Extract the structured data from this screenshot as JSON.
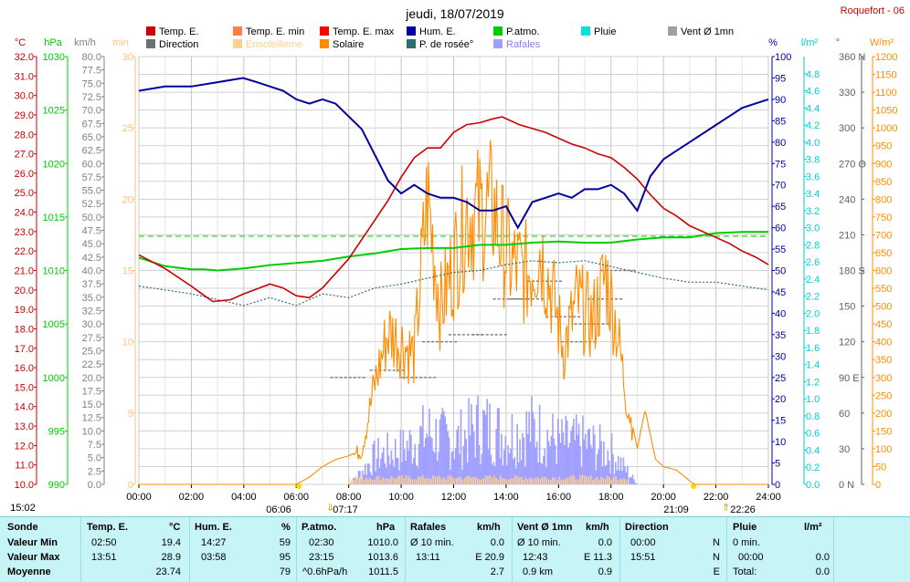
{
  "chart_data": {
    "type": "line",
    "title": "jeudi, 18/07/2019",
    "station": "Roquefort - 06",
    "legend": [
      {
        "label": "Temp. E.",
        "color": "#cc0000"
      },
      {
        "label": "Temp. E. min",
        "color": "#ff7f3f"
      },
      {
        "label": "Temp. E. max",
        "color": "#ff0000"
      },
      {
        "label": "Hum. E.",
        "color": "#0000a0"
      },
      {
        "label": "P.atmo.",
        "color": "#00cc00"
      },
      {
        "label": "Pluie",
        "color": "#00e0e0"
      },
      {
        "label": "Vent Ø 1mn",
        "color": "#a0a0a0"
      },
      {
        "label": "Direction",
        "color": "#707070"
      },
      {
        "label": "Ensoleilleme",
        "color": "#ffd090"
      },
      {
        "label": "Solaire",
        "color": "#ff8c00"
      },
      {
        "label": "P. de rosée°",
        "color": "#2f6f6f"
      },
      {
        "label": "Rafales",
        "color": "#a0a0ff"
      }
    ],
    "axes": {
      "temp_c": {
        "unit": "°C",
        "min": 10,
        "max": 32,
        "ticks": [
          "10.0",
          "11.0",
          "12.0",
          "13.0",
          "14.0",
          "15.0",
          "16.0",
          "17.0",
          "18.0",
          "19.0",
          "20.0",
          "21.0",
          "22.0",
          "23.0",
          "24.0",
          "25.0",
          "26.0",
          "27.0",
          "28.0",
          "29.0",
          "30.0",
          "31.0",
          "32.0"
        ]
      },
      "pressure_hpa": {
        "unit": "hPa",
        "min": 990,
        "max": 1030,
        "ticks": [
          "990",
          "995",
          "1000",
          "1005",
          "1010",
          "1015",
          "1020",
          "1025",
          "1030"
        ]
      },
      "wind_kmh": {
        "unit": "km/h",
        "min": 0,
        "max": 80,
        "ticks": [
          "0.0",
          "2.5",
          "5.0",
          "7.5",
          "10.0",
          "12.5",
          "15.0",
          "17.5",
          "20.0",
          "22.5",
          "25.0",
          "27.5",
          "30.0",
          "32.5",
          "35.0",
          "37.5",
          "40.0",
          "42.5",
          "45.0",
          "47.5",
          "50.0",
          "52.5",
          "55.0",
          "57.5",
          "60.0",
          "62.5",
          "65.0",
          "67.5",
          "70.0",
          "72.5",
          "75.0",
          "77.5",
          "80.0"
        ]
      },
      "rain_min": {
        "unit": "min",
        "min": 0,
        "max": 30,
        "ticks": [
          "0",
          "5",
          "10",
          "15",
          "20",
          "25",
          "30"
        ]
      },
      "humidity_pct": {
        "unit": "%",
        "min": 0,
        "max": 100,
        "ticks": [
          "0",
          "5",
          "10",
          "15",
          "20",
          "25",
          "30",
          "35",
          "40",
          "45",
          "50",
          "55",
          "60",
          "65",
          "70",
          "75",
          "80",
          "85",
          "90",
          "95",
          "100"
        ]
      },
      "rain_lm2": {
        "unit": "l/m²",
        "min": 0,
        "max": 5,
        "ticks": [
          "0.0",
          "0.2",
          "0.4",
          "0.6",
          "0.8",
          "1.0",
          "1.2",
          "1.4",
          "1.6",
          "1.8",
          "2.0",
          "2.2",
          "2.4",
          "2.6",
          "2.8",
          "3.0",
          "3.2",
          "3.4",
          "3.6",
          "3.8",
          "4.0",
          "4.2",
          "4.4",
          "4.6",
          "4.8"
        ]
      },
      "direction_deg": {
        "unit": "°",
        "min": 0,
        "max": 360,
        "ticks": [
          "0 N",
          "30",
          "60",
          "90 E",
          "120",
          "150",
          "180 S",
          "210",
          "240",
          "270 O",
          "300",
          "330",
          "360 N"
        ]
      },
      "solar_wm2": {
        "unit": "W/m²",
        "min": 0,
        "max": 1200,
        "ticks": [
          "0",
          "50",
          "100",
          "150",
          "200",
          "250",
          "300",
          "350",
          "400",
          "450",
          "500",
          "550",
          "600",
          "650",
          "700",
          "750",
          "800",
          "850",
          "900",
          "950",
          "1000",
          "1050",
          "1100",
          "1150",
          "1200"
        ]
      }
    },
    "x_ticks": [
      "00:00",
      "02:00",
      "04:00",
      "06:00",
      "08:00",
      "10:00",
      "12:00",
      "14:00",
      "16:00",
      "18:00",
      "20:00",
      "22:00",
      "24:00"
    ],
    "sun_markers": {
      "sunrise": "06:06",
      "sunset": "21:09",
      "moonset": "07:17",
      "moonrise": "22:26",
      "moon_prev": "15:02"
    },
    "series": [
      {
        "name": "Temp. E.",
        "axis": "temp_c",
        "color": "#cc0000",
        "x": [
          0,
          1,
          2,
          2.5,
          2.83,
          3.5,
          4,
          5,
          5.5,
          6,
          6.5,
          7,
          8,
          9,
          9.5,
          10,
          10.5,
          11,
          11.5,
          12,
          12.5,
          13,
          13.5,
          13.85,
          14.5,
          15,
          15.5,
          16,
          16.5,
          17,
          17.5,
          18,
          18.5,
          19,
          19.5,
          20,
          20.5,
          21,
          21.5,
          22,
          22.5,
          23,
          23.5,
          24
        ],
        "y": [
          21.8,
          21.1,
          20.2,
          19.7,
          19.4,
          19.5,
          19.8,
          20.3,
          20.1,
          19.7,
          19.6,
          20.1,
          21.6,
          23.6,
          24.6,
          25.8,
          26.8,
          27.3,
          27.3,
          28.1,
          28.5,
          28.6,
          28.8,
          28.9,
          28.5,
          28.3,
          28.1,
          27.8,
          27.5,
          27.3,
          27.0,
          26.8,
          26.3,
          25.7,
          24.9,
          24.2,
          23.8,
          23.3,
          23.0,
          22.7,
          22.4,
          22.0,
          21.7,
          21.3
        ]
      },
      {
        "name": "Hum. E.",
        "axis": "humidity_pct",
        "color": "#0000a0",
        "x": [
          0,
          1,
          2,
          3,
          3.97,
          4.5,
          5,
          5.5,
          6,
          6.5,
          7,
          7.5,
          8,
          8.5,
          9,
          9.5,
          10,
          10.5,
          11,
          11.5,
          12,
          12.5,
          13,
          13.5,
          14,
          14.45,
          15,
          15.5,
          16,
          16.5,
          17,
          17.5,
          18,
          18.5,
          19,
          19.5,
          20,
          20.5,
          21,
          21.5,
          22,
          22.5,
          23,
          23.5,
          24
        ],
        "y": [
          92,
          93,
          93,
          94,
          95,
          94,
          93,
          92,
          90,
          89,
          90,
          89,
          86,
          83,
          77,
          71,
          68,
          70,
          68,
          67,
          67,
          66,
          64,
          64,
          65,
          60,
          66,
          67,
          68,
          67,
          69,
          69,
          70,
          68,
          64,
          72,
          76,
          78,
          80,
          82,
          84,
          86,
          88,
          89,
          90
        ]
      },
      {
        "name": "P.atmo.",
        "axis": "pressure_hpa",
        "color": "#00cc00",
        "x": [
          0,
          1,
          2,
          2.5,
          3,
          4,
          5,
          6,
          7,
          8,
          9,
          10,
          11,
          12,
          13,
          14,
          15,
          16,
          17,
          18,
          19,
          20,
          21,
          22,
          23,
          23.25,
          24
        ],
        "y": [
          1011.2,
          1010.4,
          1010.1,
          1010.1,
          1010.0,
          1010.2,
          1010.5,
          1010.7,
          1010.9,
          1011.3,
          1011.6,
          1012.0,
          1012.1,
          1012.1,
          1012.4,
          1012.4,
          1012.6,
          1012.7,
          1012.6,
          1012.6,
          1012.9,
          1013.1,
          1013.1,
          1013.5,
          1013.6,
          1013.6,
          1013.6
        ]
      },
      {
        "name": "P. de rosée°",
        "axis": "temp_c",
        "color": "#2f6f6f",
        "x": [
          0,
          1,
          2,
          3,
          4,
          5,
          6,
          7,
          8,
          9,
          10,
          11,
          12,
          13,
          14,
          15,
          16,
          17,
          18,
          19,
          20,
          21,
          22,
          23,
          24
        ],
        "y": [
          20.2,
          20.0,
          19.8,
          19.5,
          19.2,
          19.6,
          19.2,
          19.8,
          19.6,
          20.1,
          20.3,
          20.6,
          20.9,
          21.0,
          21.3,
          21.5,
          21.4,
          21.5,
          21.2,
          20.9,
          20.6,
          20.4,
          20.4,
          20.2,
          20.0
        ]
      },
      {
        "name": "Solaire",
        "axis": "solar_wm2",
        "color": "#ff8c00",
        "x": [
          0,
          6.0,
          6.5,
          7,
          7.5,
          8,
          8.5,
          9,
          9.5,
          10,
          10.5,
          11,
          11.5,
          12,
          12.5,
          13,
          13.5,
          13.8,
          14.2,
          14.8,
          15.3,
          15.8,
          16.2,
          16.7,
          17.3,
          17.8,
          18.2,
          18.6,
          19.0,
          19.3,
          19.7,
          20.0,
          20.5,
          21.0,
          21.2,
          24
        ],
        "y": [
          0,
          0,
          20,
          50,
          70,
          80,
          100,
          300,
          450,
          420,
          380,
          850,
          520,
          650,
          800,
          800,
          820,
          730,
          650,
          620,
          700,
          550,
          400,
          540,
          480,
          620,
          470,
          250,
          100,
          210,
          70,
          50,
          40,
          10,
          0,
          0
        ]
      },
      {
        "name": "Rafales",
        "axis": "wind_kmh",
        "color": "#a0a0ff",
        "x": [
          0,
          8,
          9,
          10,
          11,
          12,
          13,
          14,
          15,
          16,
          17,
          18,
          19,
          24
        ],
        "y": [
          0,
          0,
          8,
          10,
          15,
          12,
          17,
          14,
          16,
          12,
          12,
          9,
          0,
          0
        ]
      }
    ],
    "stats": {
      "headers": [
        {
          "label": "Sonde",
          "unit": ""
        },
        {
          "label": "Temp. E.",
          "unit": "°C"
        },
        {
          "label": "Hum. E.",
          "unit": "%"
        },
        {
          "label": "P.atmo.",
          "unit": "hPa"
        },
        {
          "label": "Rafales",
          "unit": "km/h"
        },
        {
          "label": "Vent Ø 1mn",
          "unit": "km/h"
        },
        {
          "label": "Direction",
          "unit": ""
        },
        {
          "label": "Pluie",
          "unit": "l/m²"
        }
      ],
      "rows": [
        {
          "label": "Valeur Min",
          "temp_t": "02:50",
          "temp_v": "19.4",
          "hum_t": "14:27",
          "hum_v": "59",
          "p_t": "02:30",
          "p_v": "1010.0",
          "raf_t": "Ø 10 min.",
          "raf_v": "0.0",
          "vent_t": "Ø 10 min.",
          "vent_v": "0.0",
          "dir_t": "00:00",
          "dir_v": "N",
          "pluie_t": "0 min.",
          "pluie_v": ""
        },
        {
          "label": "Valeur Max",
          "temp_t": "13:51",
          "temp_v": "28.9",
          "hum_t": "03:58",
          "hum_v": "95",
          "p_t": "23:15",
          "p_v": "1013.6",
          "raf_t": "13:11",
          "raf_v": "E 20.9",
          "vent_t": "12:43",
          "vent_v": "E 11.3",
          "dir_t": "15:51",
          "dir_v": "N",
          "pluie_t": "00:00",
          "pluie_v": "0.0"
        },
        {
          "label": "Moyenne",
          "temp_t": "",
          "temp_v": "23.74",
          "hum_t": "",
          "hum_v": "79",
          "p_t": "^0.6hPa/h",
          "p_v": "1011.5",
          "raf_t": "",
          "raf_v": "2.7",
          "vent_t": "0.9 km",
          "vent_v": "0.9",
          "dir_t": "",
          "dir_v": "E",
          "pluie_t": "Total:",
          "pluie_v": "0.0"
        }
      ]
    }
  }
}
